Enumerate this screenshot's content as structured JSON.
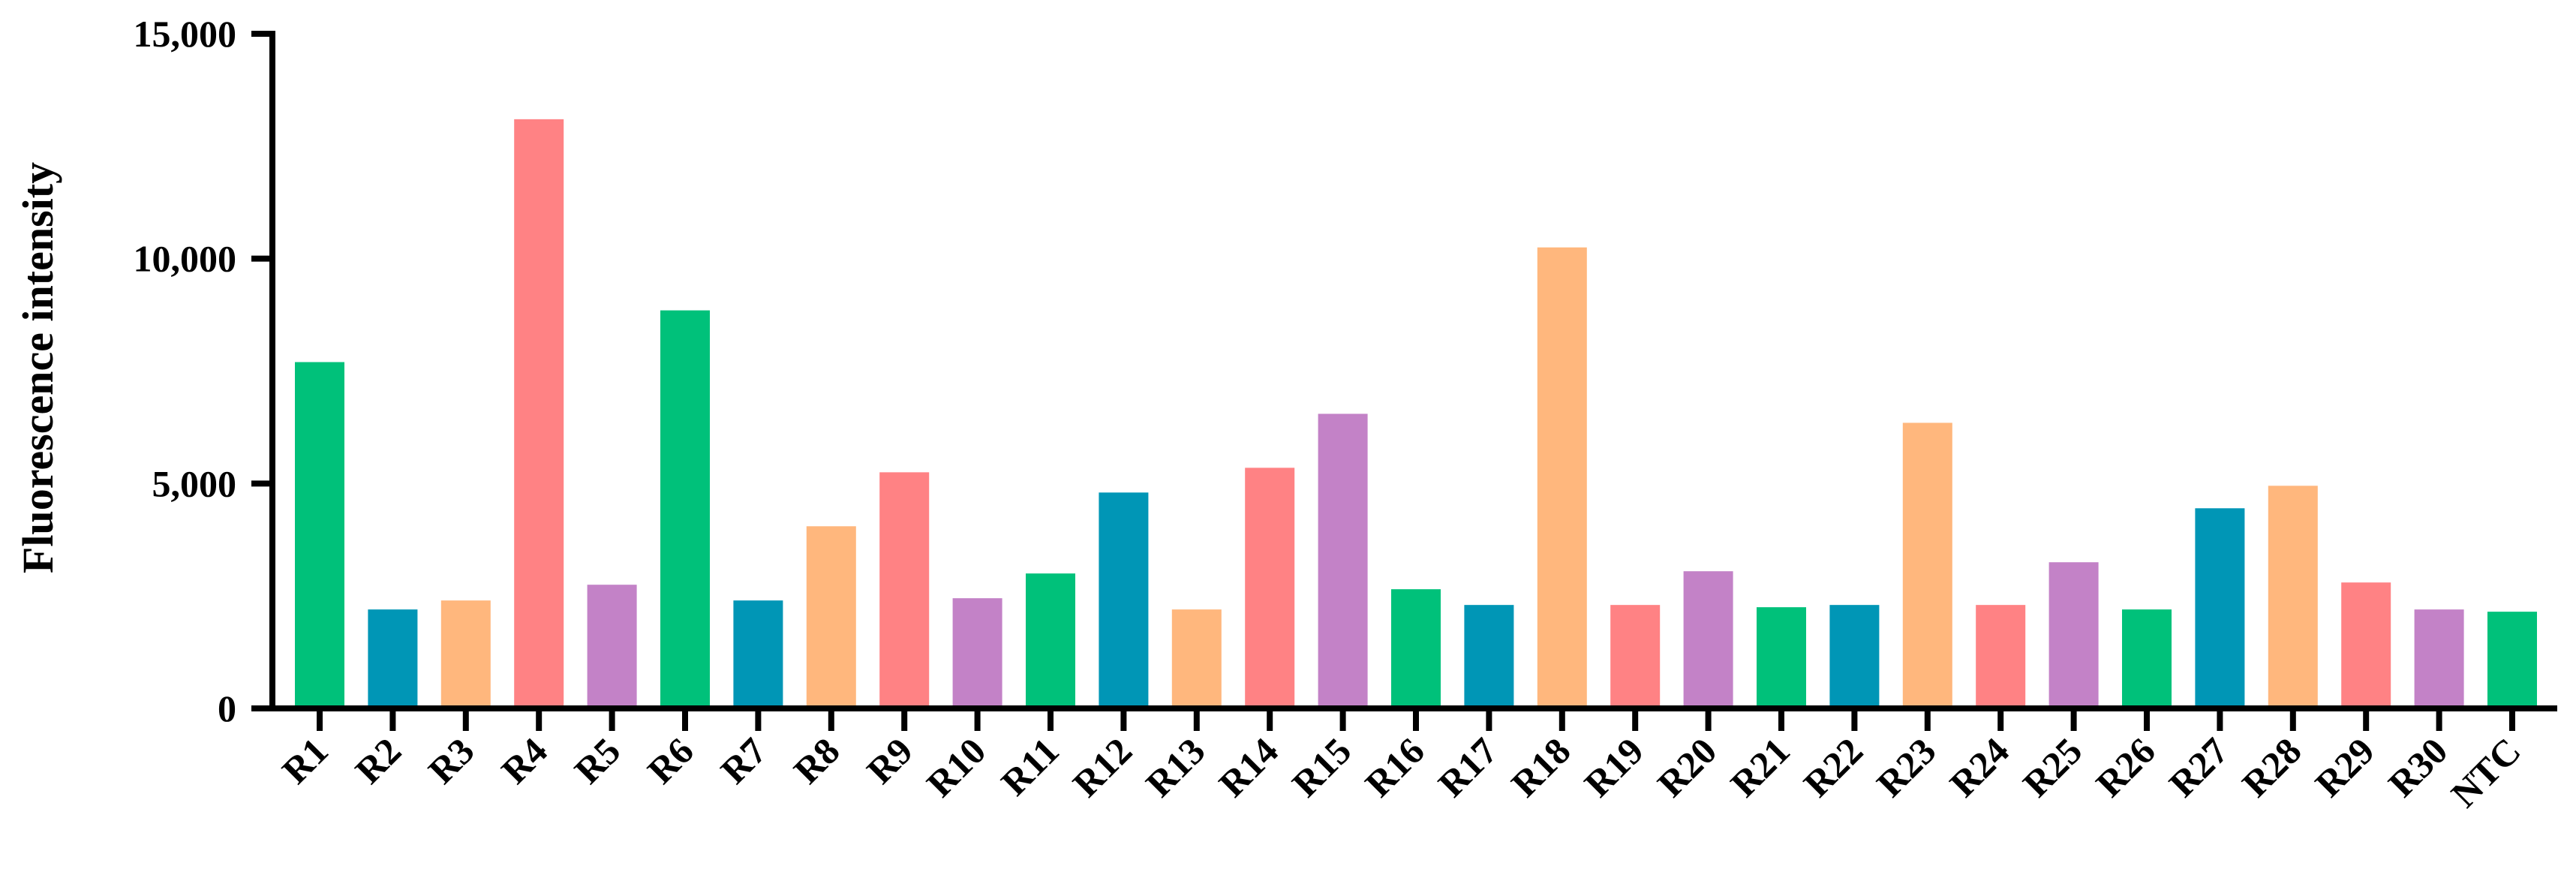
{
  "chart_data": {
    "type": "bar",
    "ylabel": "Fluorescence intensity",
    "xlabel": "",
    "ylim": [
      0,
      15000
    ],
    "yticks": [
      0,
      5000,
      10000,
      15000
    ],
    "ytick_labels": [
      "0",
      "5,000",
      "10,000",
      "15,000"
    ],
    "grid": false,
    "legend": "none",
    "categories": [
      "R1",
      "R2",
      "R3",
      "R4",
      "R5",
      "R6",
      "R7",
      "R8",
      "R9",
      "R10",
      "R11",
      "R12",
      "R13",
      "R14",
      "R15",
      "R16",
      "R17",
      "R18",
      "R19",
      "R20",
      "R21",
      "R22",
      "R23",
      "R24",
      "R25",
      "R26",
      "R27",
      "R28",
      "R29",
      "R30",
      "NTC"
    ],
    "values": [
      7700,
      2200,
      2400,
      13100,
      2750,
      8850,
      2400,
      4050,
      5250,
      2450,
      3000,
      4800,
      2200,
      5350,
      6550,
      2650,
      2300,
      10250,
      2300,
      3050,
      2250,
      2300,
      6350,
      2300,
      3250,
      2200,
      4450,
      4950,
      2800,
      2200,
      2150
    ],
    "colors": [
      "#00C17A",
      "#0096B6",
      "#FFB77D",
      "#FF8284",
      "#C382C7",
      "#00C17A",
      "#0096B6",
      "#FFB77D",
      "#FF8284",
      "#C382C7",
      "#00C17A",
      "#0096B6",
      "#FFB77D",
      "#FF8284",
      "#C382C7",
      "#00C17A",
      "#0096B6",
      "#FFB77D",
      "#FF8284",
      "#C382C7",
      "#00C17A",
      "#0096B6",
      "#FFB77D",
      "#FF8284",
      "#C382C7",
      "#00C17A",
      "#0096B6",
      "#FFB77D",
      "#FF8284",
      "#C382C7",
      "#00C17A"
    ]
  }
}
